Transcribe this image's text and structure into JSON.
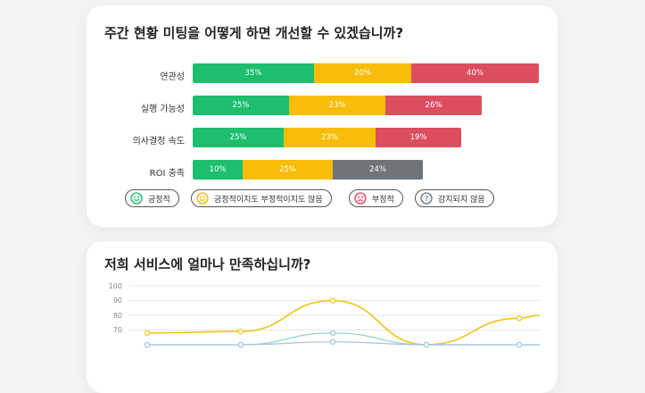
{
  "survey1": {
    "question": "주간 현황 미팅을 어떻게 하면 개선할 수 있겠습니까?",
    "rows": [
      {
        "label": "연관성",
        "segments": [
          {
            "value": "35%",
            "kind": "positive"
          },
          {
            "value": "20%",
            "kind": "neutral"
          },
          {
            "value": "40%",
            "kind": "negative"
          }
        ]
      },
      {
        "label": "실행 가능성",
        "segments": [
          {
            "value": "25%",
            "kind": "positive"
          },
          {
            "value": "23%",
            "kind": "neutral"
          },
          {
            "value": "26%",
            "kind": "negative"
          }
        ]
      },
      {
        "label": "의사결정 속도",
        "segments": [
          {
            "value": "25%",
            "kind": "positive"
          },
          {
            "value": "23%",
            "kind": "neutral"
          },
          {
            "value": "19%",
            "kind": "negative"
          }
        ]
      },
      {
        "label": "ROI 충족",
        "segments": [
          {
            "value": "10%",
            "kind": "positive"
          },
          {
            "value": "25%",
            "kind": "neutral"
          },
          {
            "value": "24%",
            "kind": "unknown"
          }
        ]
      }
    ],
    "legend": [
      {
        "label": "긍정적",
        "icon": "smile-icon",
        "color": "#17b866"
      },
      {
        "label": "긍정적이지도 부정적이지도 않음",
        "icon": "neutral-face-icon",
        "color": "#f2b705"
      },
      {
        "label": "부정적",
        "icon": "sad-face-icon",
        "color": "#d9455b"
      },
      {
        "label": "감지되지 않음",
        "icon": "question-icon",
        "color": "#6b7280"
      }
    ],
    "colors": {
      "positive": "#1dbf6e",
      "neutral": "#f7bd08",
      "negative": "#dc4e5f",
      "unknown": "#6e7478"
    }
  },
  "survey2": {
    "question": "저희 서비스에 얼마나 만족하십니까?"
  },
  "chart_data": {
    "type": "line",
    "y_ticks": [
      "100",
      "90",
      "80",
      "70"
    ],
    "ylim": [
      60,
      100
    ],
    "series": [
      {
        "color": "#f0c419",
        "values": [
          68,
          69,
          90,
          60,
          78,
          80
        ]
      },
      {
        "color": "#8fd3c8",
        "values": [
          60,
          60,
          68,
          60,
          60,
          60
        ]
      },
      {
        "color": "#9fc5e8",
        "values": [
          60,
          60,
          62,
          60,
          60,
          60
        ]
      }
    ]
  }
}
